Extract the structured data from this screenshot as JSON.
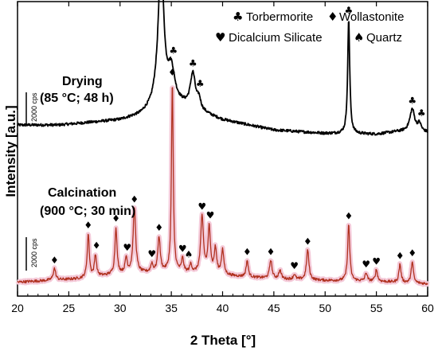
{
  "chart_data": {
    "type": "line",
    "xlabel": "2 Theta [°]",
    "ylabel": "Intensity [a.u.]",
    "xlim": [
      20,
      60
    ],
    "x_ticks": [
      "20",
      "25",
      "30",
      "35",
      "40",
      "45",
      "50",
      "55",
      "60"
    ],
    "grid": false,
    "legend_position": "top-right",
    "legend": [
      {
        "symbol": "♣",
        "label": "Torbermorite"
      },
      {
        "symbol": "♦",
        "label": "Wollastonite"
      },
      {
        "symbol": "♥",
        "label": "Dicalcium Silicate"
      },
      {
        "symbol": "♠",
        "label": "Quartz"
      }
    ],
    "scale_bar_label": "2000 cps",
    "colors": {
      "drying": "#000000",
      "calcination_line": "#b0311f",
      "calcination_shade": "#f4c9d8"
    },
    "series": [
      {
        "name": "Drying (85 °C; 48 h)",
        "label_lines": [
          "Drying",
          "(85 °C; 48 h)"
        ],
        "baseline": [
          [
            20,
            1850
          ],
          [
            24,
            1850
          ],
          [
            28,
            2050
          ],
          [
            30,
            2150
          ],
          [
            32,
            2450
          ],
          [
            33,
            2850
          ],
          [
            33.5,
            3300
          ],
          [
            36,
            3000
          ],
          [
            40,
            2150
          ],
          [
            45,
            1550
          ],
          [
            50,
            1350
          ],
          [
            55,
            1300
          ],
          [
            57,
            1450
          ],
          [
            58.5,
            1500
          ],
          [
            60,
            1400
          ]
        ],
        "peaks": [
          [
            34.0,
            8800,
            0.3
          ],
          [
            35.0,
            1900,
            0.4
          ],
          [
            37.1,
            2100,
            0.3
          ],
          [
            37.7,
            600,
            0.2
          ],
          [
            52.3,
            6900,
            0.12
          ],
          [
            58.5,
            1300,
            0.28
          ],
          [
            59.2,
            450,
            0.2
          ]
        ],
        "markers": [
          {
            "x": 34.0,
            "symbol": "♣"
          },
          {
            "x": 35.2,
            "symbol": "♣"
          },
          {
            "x": 37.1,
            "symbol": "♣"
          },
          {
            "x": 37.8,
            "symbol": "♣"
          },
          {
            "x": 52.3,
            "symbol": "♣"
          },
          {
            "x": 58.5,
            "symbol": "♣"
          },
          {
            "x": 59.4,
            "symbol": "♣"
          }
        ]
      },
      {
        "name": "Calcination (900 °C; 30 min)",
        "label_lines": [
          "Calcination",
          "(900 °C; 30 min)"
        ],
        "baseline": [
          [
            20,
            1500
          ],
          [
            26,
            1700
          ],
          [
            30,
            2000
          ],
          [
            35,
            2100
          ],
          [
            40,
            1900
          ],
          [
            45,
            1700
          ],
          [
            50,
            1600
          ],
          [
            55,
            1550
          ],
          [
            60,
            1400
          ]
        ],
        "peaks": [
          [
            23.6,
            700,
            0.14
          ],
          [
            26.9,
            2600,
            0.12
          ],
          [
            27.6,
            1300,
            0.12
          ],
          [
            29.6,
            2800,
            0.12
          ],
          [
            30.6,
            900,
            0.12
          ],
          [
            31.4,
            3900,
            0.15
          ],
          [
            33.1,
            500,
            0.12
          ],
          [
            33.8,
            2100,
            0.14
          ],
          [
            35.1,
            11400,
            0.1
          ],
          [
            36.1,
            800,
            0.12
          ],
          [
            36.9,
            500,
            0.12
          ],
          [
            38.0,
            3400,
            0.16
          ],
          [
            38.7,
            2800,
            0.14
          ],
          [
            39.3,
            1500,
            0.14
          ],
          [
            40.0,
            1500,
            0.14
          ],
          [
            42.4,
            1000,
            0.12
          ],
          [
            44.7,
            1100,
            0.14
          ],
          [
            45.6,
            500,
            0.14
          ],
          [
            47.0,
            300,
            0.12
          ],
          [
            48.3,
            1800,
            0.14
          ],
          [
            52.3,
            3400,
            0.12
          ],
          [
            54.0,
            500,
            0.12
          ],
          [
            55.0,
            700,
            0.12
          ],
          [
            57.3,
            1100,
            0.12
          ],
          [
            58.5,
            1300,
            0.12
          ]
        ],
        "markers": [
          {
            "x": 23.6,
            "symbol": "♦"
          },
          {
            "x": 26.9,
            "symbol": "♦"
          },
          {
            "x": 27.7,
            "symbol": "♦"
          },
          {
            "x": 29.6,
            "symbol": "♦"
          },
          {
            "x": 30.7,
            "symbol": "♥"
          },
          {
            "x": 31.4,
            "symbol": "♦"
          },
          {
            "x": 33.1,
            "symbol": "♥"
          },
          {
            "x": 33.8,
            "symbol": "♦"
          },
          {
            "x": 35.1,
            "symbol": "♦"
          },
          {
            "x": 36.1,
            "symbol": "♥"
          },
          {
            "x": 36.7,
            "symbol": "♠"
          },
          {
            "x": 38.0,
            "symbol": "♥"
          },
          {
            "x": 38.8,
            "symbol": "♥"
          },
          {
            "x": 42.4,
            "symbol": "♦"
          },
          {
            "x": 44.7,
            "symbol": "♦"
          },
          {
            "x": 47.0,
            "symbol": "♥"
          },
          {
            "x": 48.3,
            "symbol": "♦"
          },
          {
            "x": 52.3,
            "symbol": "♦"
          },
          {
            "x": 54.0,
            "symbol": "♥"
          },
          {
            "x": 55.0,
            "symbol": "♥"
          },
          {
            "x": 57.3,
            "symbol": "♦"
          },
          {
            "x": 58.5,
            "symbol": "♦"
          }
        ]
      }
    ]
  }
}
